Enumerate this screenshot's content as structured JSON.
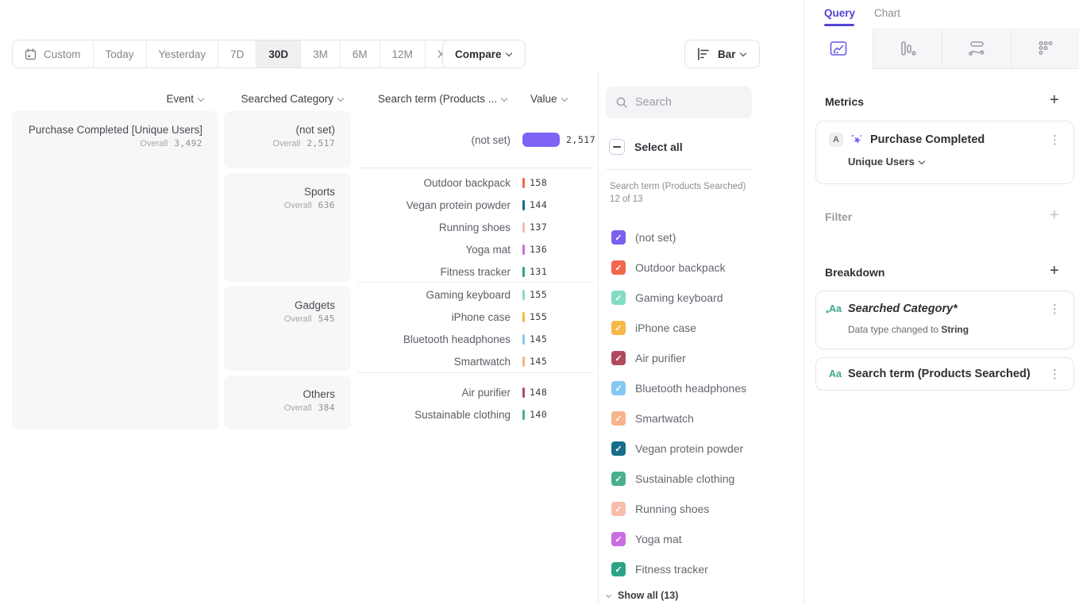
{
  "colors": {
    "accent": "#5246d6",
    "purple_bar": "#7e63f4",
    "icon_gray": "#9a9aa2",
    "teal_aa": "#3ba88f"
  },
  "icons": {
    "check": "✓",
    "kebab": "⋮",
    "plus": "+"
  },
  "toolbar": {
    "date_ranges": [
      {
        "label": "Custom",
        "icon": true
      },
      {
        "label": "Today"
      },
      {
        "label": "Yesterday"
      },
      {
        "label": "7D"
      },
      {
        "label": "30D",
        "selected": true
      },
      {
        "label": "3M"
      },
      {
        "label": "6M"
      },
      {
        "label": "12M"
      },
      {
        "label": "XTD",
        "chevron": true
      }
    ],
    "compare_label": "Compare",
    "chart_type": {
      "label": "Bar"
    }
  },
  "table": {
    "headers": [
      "Event",
      "Searched Category",
      "Search term (Products ...",
      "Value"
    ],
    "overall_label": "Overall",
    "event": {
      "name": "Purchase Completed [Unique Users]",
      "overall": "3,492"
    },
    "groups": [
      {
        "category": "(not set)",
        "overall": "2,517",
        "rows": [
          {
            "term": "(not set)",
            "value": "2,517",
            "color": "#7e63f4",
            "big": true
          }
        ]
      },
      {
        "category": "Sports",
        "overall": "636",
        "rows": [
          {
            "term": "Outdoor backpack",
            "value": "158",
            "color": "#f4664d"
          },
          {
            "term": "Vegan protein powder",
            "value": "144",
            "color": "#176e8a"
          },
          {
            "term": "Running shoes",
            "value": "137",
            "color": "#f8bcab"
          },
          {
            "term": "Yoga mat",
            "value": "136",
            "color": "#c86ee0"
          },
          {
            "term": "Fitness tracker",
            "value": "131",
            "color": "#2ba487"
          }
        ]
      },
      {
        "category": "Gadgets",
        "overall": "545",
        "rows": [
          {
            "term": "Gaming keyboard",
            "value": "155",
            "color": "#82dcc4"
          },
          {
            "term": "iPhone case",
            "value": "155",
            "color": "#f6b846"
          },
          {
            "term": "Bluetooth headphones",
            "value": "145",
            "color": "#85c8f2"
          },
          {
            "term": "Smartwatch",
            "value": "145",
            "color": "#f6b58a"
          }
        ]
      },
      {
        "category": "Others",
        "overall": "384",
        "rows": [
          {
            "term": "Air purifier",
            "value": "148",
            "color": "#b04a5e"
          },
          {
            "term": "Sustainable clothing",
            "value": "140",
            "color": "#48b08a"
          }
        ]
      }
    ]
  },
  "filter_panel": {
    "search_placeholder": "Search",
    "select_all_label": "Select all",
    "list_label": "Search term (Products Searched) 12 of 13",
    "items": [
      {
        "label": "(not set)",
        "color": "#7a5ff0"
      },
      {
        "label": "Outdoor backpack",
        "color": "#f4664d"
      },
      {
        "label": "Gaming keyboard",
        "color": "#82dcc4"
      },
      {
        "label": "iPhone case",
        "color": "#f6b846"
      },
      {
        "label": "Air purifier",
        "color": "#b04a5e"
      },
      {
        "label": "Bluetooth headphones",
        "color": "#85c8f2"
      },
      {
        "label": "Smartwatch",
        "color": "#f6b58a"
      },
      {
        "label": "Vegan protein powder",
        "color": "#176e8a"
      },
      {
        "label": "Sustainable clothing",
        "color": "#48b08a"
      },
      {
        "label": "Running shoes",
        "color": "#f8bcab"
      },
      {
        "label": "Yoga mat",
        "color": "#c86ee0"
      },
      {
        "label": "Fitness tracker",
        "color": "#2ba487",
        "pattern": true
      }
    ],
    "show_all_label": "Show all (13)"
  },
  "sidebar": {
    "tabs": [
      {
        "label": "Query",
        "active": true
      },
      {
        "label": "Chart",
        "active": false
      }
    ],
    "icon_tabs": [
      "insights",
      "funnels",
      "flows",
      "retention"
    ],
    "metrics": {
      "heading": "Metrics",
      "card": {
        "badge": "A",
        "title": "Purchase Completed",
        "subtitle": "Unique Users"
      }
    },
    "filter_heading": "Filter",
    "breakdown": {
      "heading": "Breakdown",
      "items": [
        {
          "title": "Searched Category*",
          "note_prefix": "Data type changed to ",
          "note_emph": "String"
        },
        {
          "title": "Search term (Products Searched)"
        }
      ]
    }
  }
}
